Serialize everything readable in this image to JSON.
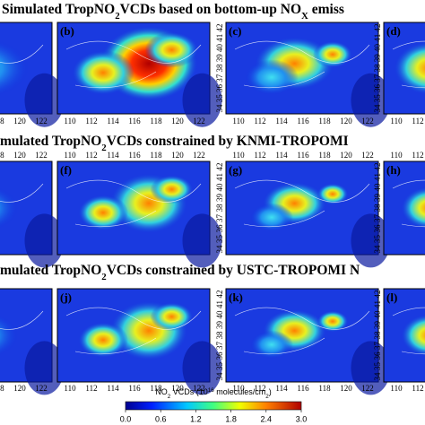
{
  "rows": [
    {
      "title_parts": [
        "Simulated TropNO",
        "2",
        "VCDs  based on bottom-up NO",
        "X",
        " emiss"
      ],
      "panels": [
        "(b)",
        "(c)",
        "(d)"
      ]
    },
    {
      "title_parts": [
        "mulated TropNO",
        "2",
        "VCDs constrained by KNMI-TROPOMI"
      ],
      "panels": [
        "(f)",
        "(g)",
        "(h)"
      ]
    },
    {
      "title_parts": [
        "mulated TropNO",
        "2",
        "VCDs constrained by USTC-TROPOMI N"
      ],
      "panels": [
        "(j)",
        "(k)",
        "(l)"
      ]
    }
  ],
  "lon_ticks": [
    110,
    112,
    114,
    116,
    118,
    120,
    122
  ],
  "lat_ticks": [
    34,
    35,
    36,
    37,
    38,
    39,
    40,
    41,
    42
  ],
  "colorbar": {
    "label_parts": [
      "NO",
      "2",
      " VCDs (10",
      "16",
      " molecules/cm",
      "2",
      ")"
    ],
    "range": [
      0,
      3
    ],
    "ticks": [
      {
        "value": 0,
        "label": "0.0"
      },
      {
        "value": 0.6,
        "label": "0.6"
      },
      {
        "value": 1.2,
        "label": "1.2"
      },
      {
        "value": 1.8,
        "label": "1.8"
      },
      {
        "value": 2.4,
        "label": "2.4"
      },
      {
        "value": 3,
        "label": "3.0"
      }
    ]
  }
}
